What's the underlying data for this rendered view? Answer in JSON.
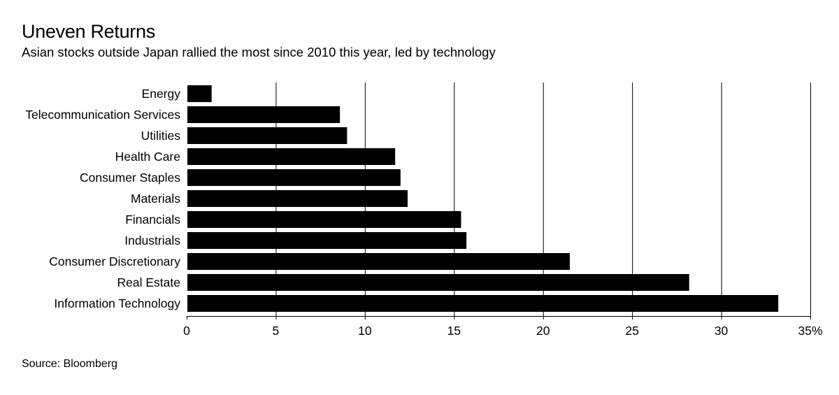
{
  "title": "Uneven Returns",
  "subtitle": "Asian stocks outside Japan rallied the most since 2010 this year, led by technology",
  "source": "Source: Bloomberg",
  "colors": {
    "bar": "#000000",
    "gridline": "#000000",
    "background": "#ffffff"
  },
  "chart_data": {
    "type": "bar",
    "orientation": "horizontal",
    "title": "Uneven Returns",
    "subtitle": "Asian stocks outside Japan rallied the most since 2010 this year, led by technology",
    "xlabel": "",
    "ylabel": "",
    "unit": "%",
    "xlim": [
      0,
      35
    ],
    "grid": true,
    "legend": "none",
    "x_ticks": [
      0,
      5,
      10,
      15,
      20,
      25,
      30,
      35
    ],
    "x_tick_labels": [
      "0",
      "5",
      "10",
      "15",
      "20",
      "25",
      "30",
      "35%"
    ],
    "categories": [
      "Energy",
      "Telecommunication Services",
      "Utilities",
      "Health Care",
      "Consumer Staples",
      "Materials",
      "Financials",
      "Industrials",
      "Consumer Discretionary",
      "Real Estate",
      "Information Technology"
    ],
    "values": [
      1.4,
      8.6,
      9.0,
      11.7,
      12.0,
      12.4,
      15.4,
      15.7,
      21.5,
      28.2,
      33.2
    ]
  }
}
